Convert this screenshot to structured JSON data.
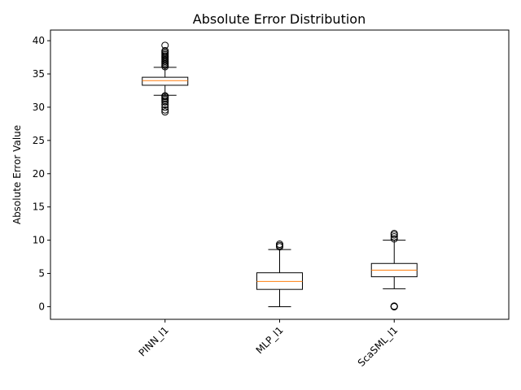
{
  "chart_data": {
    "type": "box",
    "title": "Absolute Error Distribution",
    "xlabel": "",
    "ylabel": "Absolute Error Value",
    "ylim": [
      -1.9,
      41.6
    ],
    "yticks": [
      0,
      5,
      10,
      15,
      20,
      25,
      30,
      35,
      40
    ],
    "grid": false,
    "tick_label_rotation": 45,
    "colors": {
      "box": "#000000",
      "median": "#ff7f0e",
      "background": "#ffffff"
    },
    "categories": [
      "PINN_l1",
      "MLP_l1",
      "ScaSML_l1"
    ],
    "series": [
      {
        "whisker_low": 31.8,
        "q1": 33.3,
        "median": 34.0,
        "q3": 34.5,
        "whisker_high": 36.0,
        "outliers": [
          29.3,
          29.6,
          30.0,
          30.4,
          30.8,
          31.0,
          31.2,
          31.4,
          31.6,
          31.7,
          36.1,
          36.3,
          36.5,
          36.7,
          36.9,
          37.1,
          37.3,
          37.5,
          37.7,
          37.9,
          38.1,
          38.3,
          38.5,
          39.3
        ]
      },
      {
        "whisker_low": 0.0,
        "q1": 2.6,
        "median": 3.8,
        "q3": 5.1,
        "whisker_high": 8.6,
        "outliers": [
          9.0,
          9.2,
          9.4
        ]
      },
      {
        "whisker_low": 2.7,
        "q1": 4.5,
        "median": 5.5,
        "q3": 6.5,
        "whisker_high": 10.0,
        "outliers": [
          0.0,
          0.02,
          0.05,
          0.08,
          10.2,
          10.5,
          10.8,
          11.0
        ]
      }
    ]
  }
}
